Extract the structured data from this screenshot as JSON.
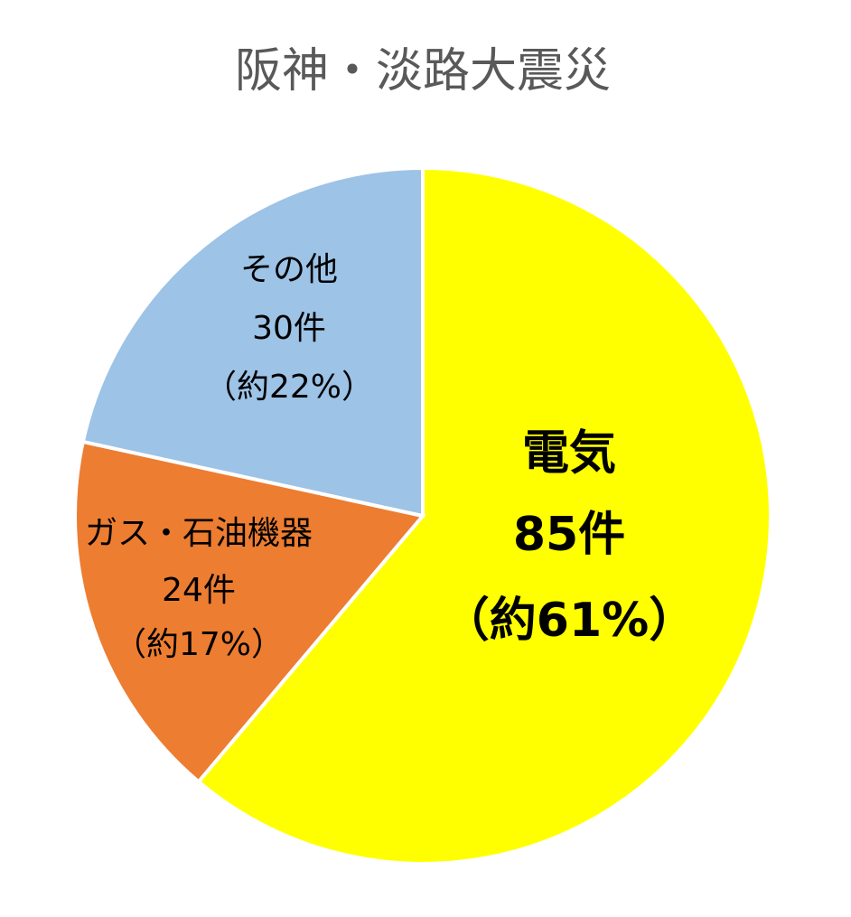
{
  "chart_data": {
    "type": "pie",
    "title": "阪神・淡路大震災",
    "categories": [
      "電気",
      "ガス・石油機器",
      "その他"
    ],
    "values": [
      85,
      24,
      30
    ],
    "value_labels": [
      "85件",
      "24件",
      "30件"
    ],
    "percent_labels": [
      "（約61%）",
      "（約17%）",
      "（約22%）"
    ],
    "colors": [
      "#ffff00",
      "#ed7d31",
      "#9dc3e6"
    ]
  }
}
